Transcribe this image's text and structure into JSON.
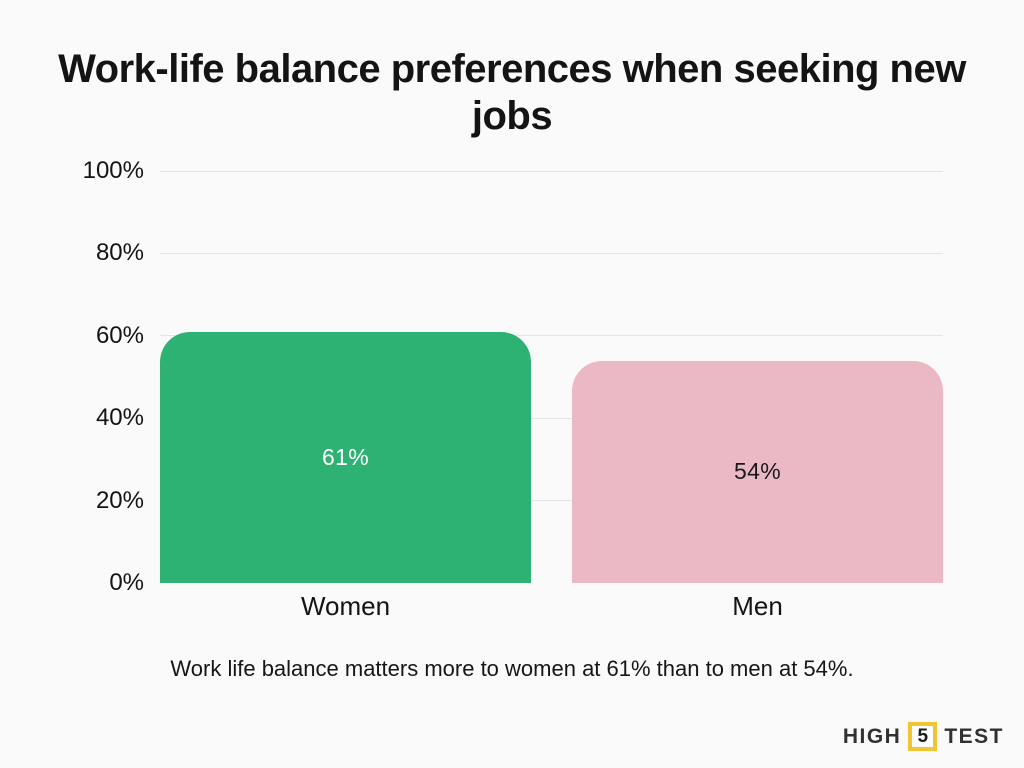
{
  "page": {
    "background": "#fafafa",
    "title_line1": "Work-life balance preferences when seeking new",
    "title_line2": "jobs",
    "caption": "Work life balance matters more to women at 61% than to men at 54%."
  },
  "chart_data": {
    "type": "bar",
    "title": "Work-life balance preferences when seeking new jobs",
    "categories": [
      "Women",
      "Men"
    ],
    "values": [
      61,
      54
    ],
    "value_labels": [
      "61%",
      "54%"
    ],
    "bar_colors": [
      "#2eb274",
      "#ebb9c5"
    ],
    "value_label_colors": [
      "#ffffff",
      "#1a1a1a"
    ],
    "xlabel": "",
    "ylabel": "",
    "ylim": [
      0,
      100
    ],
    "yticks": [
      0,
      20,
      40,
      60,
      80,
      100
    ],
    "ytick_labels": [
      "0%",
      "20%",
      "40%",
      "60%",
      "80%",
      "100%"
    ],
    "grid": "horizontal gridlines at 20/40/60/80/100, none at 0",
    "gridline_color": "#e4e4e4",
    "legend_position": "none",
    "annotation": "Work life balance matters more to women at 61% than to men at 54%."
  },
  "branding": {
    "logo_part1": "HIGH",
    "logo_number": "5",
    "logo_part2": "TEST",
    "logo_text_color": "#313131",
    "logo_accent_color": "#f0c433"
  }
}
